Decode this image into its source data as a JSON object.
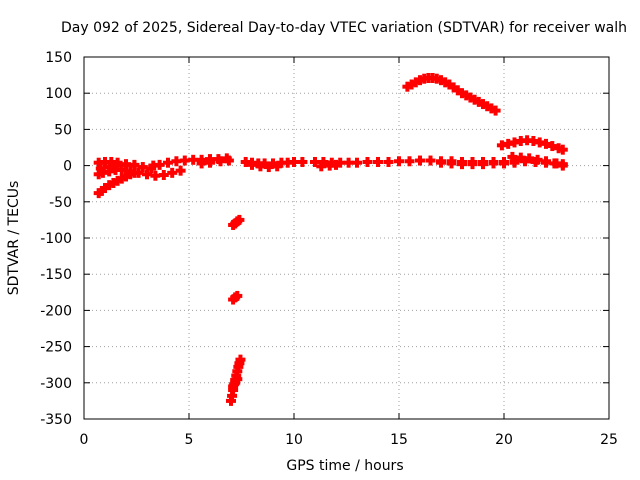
{
  "chart_data": {
    "type": "scatter",
    "title": "Day 092 of 2025, Sidereal Day-to-day VTEC variation (SDTVAR) for receiver walh",
    "xlabel": "GPS time / hours",
    "ylabel": "SDTVAR / TECUs",
    "xlim": [
      0,
      25
    ],
    "ylim": [
      -350,
      150
    ],
    "xticks": [
      0,
      5,
      10,
      15,
      20,
      25
    ],
    "yticks": [
      -350,
      -300,
      -250,
      -200,
      -150,
      -100,
      -50,
      0,
      50,
      100,
      150
    ],
    "grid": true,
    "series": [
      {
        "name": "SDTVAR",
        "color": "#ff0000",
        "marker": "plus",
        "points": [
          [
            0.7,
            -38
          ],
          [
            0.85,
            -35
          ],
          [
            1.0,
            -31
          ],
          [
            1.2,
            -27
          ],
          [
            1.4,
            -24
          ],
          [
            1.6,
            -21
          ],
          [
            1.8,
            -18
          ],
          [
            2.0,
            -15
          ],
          [
            2.2,
            -12
          ],
          [
            2.4,
            -10
          ],
          [
            0.7,
            -12
          ],
          [
            0.9,
            -10
          ],
          [
            1.2,
            -8
          ],
          [
            1.5,
            -6
          ],
          [
            1.8,
            -6
          ],
          [
            2.2,
            -8
          ],
          [
            2.6,
            -10
          ],
          [
            3.0,
            -12
          ],
          [
            3.4,
            -14
          ],
          [
            3.8,
            -13
          ],
          [
            4.2,
            -10
          ],
          [
            4.6,
            -7
          ],
          [
            0.7,
            4
          ],
          [
            1.0,
            5
          ],
          [
            1.3,
            5
          ],
          [
            1.6,
            4
          ],
          [
            2.0,
            2
          ],
          [
            2.4,
            0
          ],
          [
            2.8,
            -2
          ],
          [
            3.2,
            -4
          ],
          [
            0.8,
            -4
          ],
          [
            1.2,
            -2
          ],
          [
            1.6,
            0
          ],
          [
            2.0,
            1
          ],
          [
            2.4,
            1
          ],
          [
            3.3,
            0
          ],
          [
            3.6,
            1
          ],
          [
            4.0,
            4
          ],
          [
            4.4,
            6
          ],
          [
            4.8,
            7
          ],
          [
            5.2,
            8
          ],
          [
            5.6,
            8
          ],
          [
            6.0,
            9
          ],
          [
            6.4,
            9
          ],
          [
            6.8,
            10
          ],
          [
            5.6,
            3
          ],
          [
            6.0,
            4
          ],
          [
            6.5,
            6
          ],
          [
            6.9,
            7
          ],
          [
            7.7,
            5
          ],
          [
            8.0,
            4
          ],
          [
            8.3,
            3
          ],
          [
            8.6,
            3
          ],
          [
            9.0,
            3
          ],
          [
            9.4,
            4
          ],
          [
            9.7,
            4
          ],
          [
            10.0,
            5
          ],
          [
            10.4,
            5
          ],
          [
            8.0,
            1
          ],
          [
            8.4,
            -1
          ],
          [
            8.8,
            -2
          ],
          [
            9.2,
            -1
          ],
          [
            11.0,
            5
          ],
          [
            11.4,
            5
          ],
          [
            11.8,
            4
          ],
          [
            12.2,
            4
          ],
          [
            12.6,
            4
          ],
          [
            11.3,
            -1
          ],
          [
            11.7,
            0
          ],
          [
            12.0,
            1
          ],
          [
            13.0,
            4
          ],
          [
            13.5,
            5
          ],
          [
            14.0,
            5
          ],
          [
            14.5,
            5
          ],
          [
            15.0,
            6
          ],
          [
            15.5,
            6
          ],
          [
            16.0,
            7
          ],
          [
            16.5,
            7
          ],
          [
            17.0,
            6
          ],
          [
            17.5,
            6
          ],
          [
            18.0,
            5
          ],
          [
            18.5,
            5
          ],
          [
            19.0,
            5
          ],
          [
            19.5,
            5
          ],
          [
            20.0,
            5
          ],
          [
            20.5,
            6
          ],
          [
            21.0,
            6
          ],
          [
            21.5,
            5
          ],
          [
            22.0,
            4
          ],
          [
            22.5,
            3
          ],
          [
            22.8,
            2
          ],
          [
            17.0,
            4
          ],
          [
            17.5,
            3
          ],
          [
            18.0,
            2
          ],
          [
            18.5,
            2
          ],
          [
            19.0,
            2
          ],
          [
            19.5,
            3
          ],
          [
            20.0,
            3
          ],
          [
            20.5,
            4
          ],
          [
            20.4,
            12
          ],
          [
            20.8,
            11
          ],
          [
            21.2,
            10
          ],
          [
            21.6,
            8
          ],
          [
            22.0,
            6
          ],
          [
            22.4,
            3
          ],
          [
            22.8,
            0
          ],
          [
            15.4,
            109
          ],
          [
            15.6,
            112
          ],
          [
            15.8,
            115
          ],
          [
            16.0,
            118
          ],
          [
            16.2,
            120
          ],
          [
            16.4,
            121
          ],
          [
            16.6,
            121
          ],
          [
            16.8,
            120
          ],
          [
            17.0,
            118
          ],
          [
            17.2,
            115
          ],
          [
            17.4,
            112
          ],
          [
            17.6,
            108
          ],
          [
            17.8,
            104
          ],
          [
            18.0,
            100
          ],
          [
            18.2,
            97
          ],
          [
            18.4,
            94
          ],
          [
            18.6,
            91
          ],
          [
            18.8,
            88
          ],
          [
            19.0,
            85
          ],
          [
            19.2,
            82
          ],
          [
            19.4,
            79
          ],
          [
            19.6,
            76
          ],
          [
            19.9,
            28
          ],
          [
            20.2,
            30
          ],
          [
            20.5,
            32
          ],
          [
            20.8,
            34
          ],
          [
            21.1,
            35
          ],
          [
            21.4,
            34
          ],
          [
            21.7,
            32
          ],
          [
            22.0,
            30
          ],
          [
            22.3,
            27
          ],
          [
            22.6,
            24
          ],
          [
            22.8,
            22
          ],
          [
            7.1,
            -82
          ],
          [
            7.2,
            -80
          ],
          [
            7.3,
            -77
          ],
          [
            7.4,
            -75
          ],
          [
            7.1,
            -185
          ],
          [
            7.2,
            -182
          ],
          [
            7.3,
            -180
          ],
          [
            7.0,
            -325
          ],
          [
            7.05,
            -318
          ],
          [
            7.1,
            -310
          ],
          [
            7.15,
            -302
          ],
          [
            7.2,
            -296
          ],
          [
            7.25,
            -290
          ],
          [
            7.3,
            -284
          ],
          [
            7.35,
            -278
          ],
          [
            7.4,
            -273
          ],
          [
            7.45,
            -268
          ],
          [
            7.1,
            -305
          ],
          [
            7.2,
            -300
          ],
          [
            7.3,
            -295
          ]
        ]
      }
    ]
  }
}
